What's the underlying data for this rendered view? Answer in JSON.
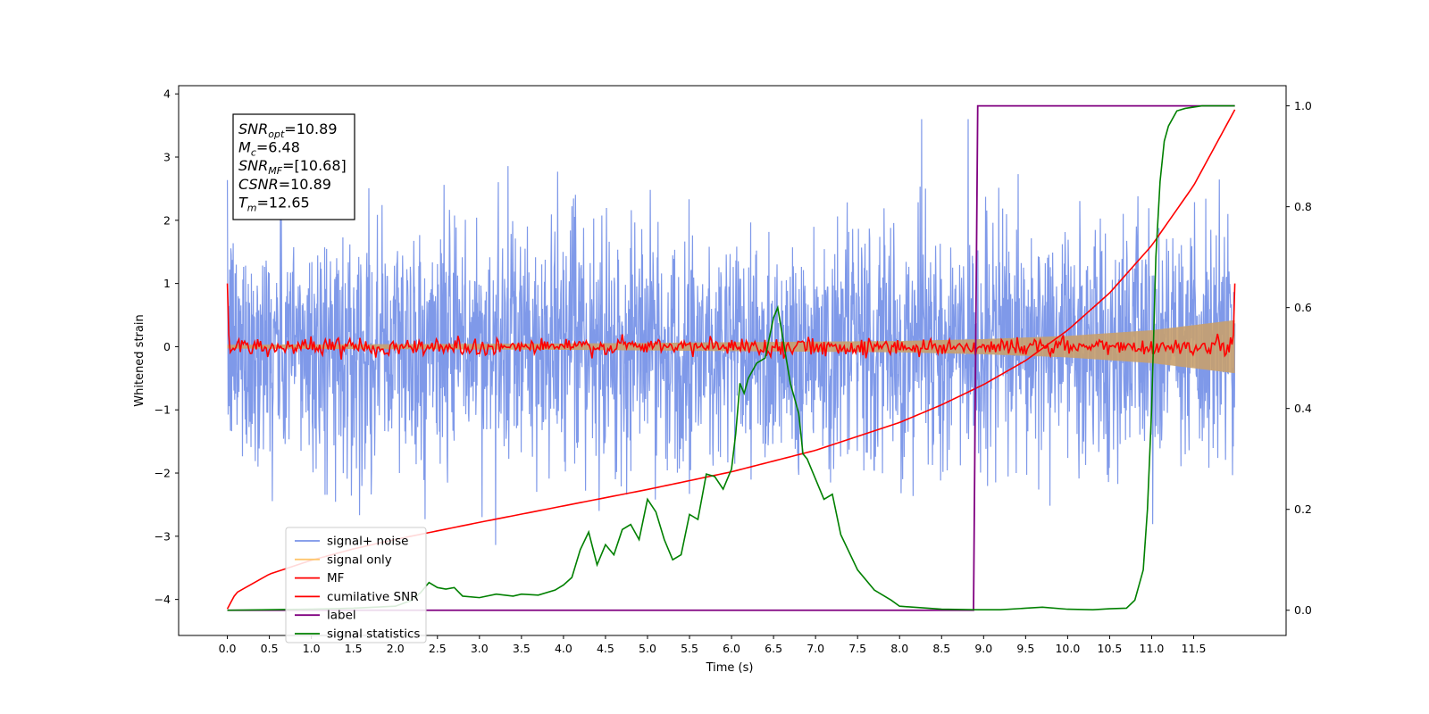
{
  "chart_data": {
    "type": "line",
    "xlabel": "Time (s)",
    "ylabel_left": "Whitened strain",
    "ylabel_right": "",
    "xlim": [
      -0.58,
      12.6
    ],
    "ylim_left": [
      -4.57,
      4.13
    ],
    "ylim_right": [
      -0.05,
      1.04
    ],
    "x_ticks": [
      0.0,
      0.5,
      1.0,
      1.5,
      2.0,
      2.5,
      3.0,
      3.5,
      4.0,
      4.5,
      5.0,
      5.5,
      6.0,
      6.5,
      7.0,
      7.5,
      8.0,
      8.5,
      9.0,
      9.5,
      10.0,
      10.5,
      11.0,
      11.5
    ],
    "x_tick_labels": [
      "0.0",
      "0.5",
      "1.0",
      "1.5",
      "2.0",
      "2.5",
      "3.0",
      "3.5",
      "4.0",
      "4.5",
      "5.0",
      "5.5",
      "6.0",
      "6.5",
      "7.0",
      "7.5",
      "8.0",
      "8.5",
      "9.0",
      "9.5",
      "10.0",
      "10.5",
      "11.0",
      "11.5"
    ],
    "y_ticks_left": [
      4,
      3,
      2,
      1,
      0,
      -1,
      -2,
      -3,
      -4
    ],
    "y_tick_labels_left": [
      "4",
      "3",
      "2",
      "1",
      "0",
      "−1",
      "−2",
      "−3",
      "−4"
    ],
    "y_ticks_right": [
      1.0,
      0.8,
      0.6,
      0.4,
      0.2,
      0.0
    ],
    "y_tick_labels_right": [
      "1.0",
      "0.8",
      "0.6",
      "0.4",
      "0.2",
      "0.0"
    ],
    "legend_placement": "lower-left",
    "legend": [
      {
        "label": "signal+ noise",
        "color": "#7893e8"
      },
      {
        "label": "signal only",
        "color": "#ffc66e"
      },
      {
        "label": "MF",
        "color": "#ff0000"
      },
      {
        "label": "cumilative SNR",
        "color": "#ff0000"
      },
      {
        "label": "label",
        "color": "#800080"
      },
      {
        "label": "signal statistics",
        "color": "#008000"
      }
    ],
    "annotation_box": [
      {
        "main": "SNR",
        "sub": "opt",
        "rest": "=10.89"
      },
      {
        "main": "M",
        "sub": "c",
        "rest": "=6.48"
      },
      {
        "main": "SNR",
        "sub": "MF",
        "rest": "=[10.68]"
      },
      {
        "main": "CSNR",
        "sub": "",
        "rest": "=10.89"
      },
      {
        "main": "T",
        "sub": "m",
        "rest": "=12.65"
      }
    ],
    "series": [
      {
        "name": "signal+ noise",
        "axis": "left",
        "color": "#7893e8",
        "x_range": [
          0.0,
          11.99
        ],
        "envelope_approx": [
          -2.6,
          2.6
        ],
        "description_values": {
          "typical_amplitude": 1.0,
          "max_peak": 3.6,
          "min_dip": -4.15
        }
      },
      {
        "name": "signal only",
        "axis": "left",
        "color": "#c8a06e",
        "x_range": [
          0.0,
          11.99
        ],
        "envelope_x": [
          0.0,
          4.0,
          8.0,
          9.0,
          10.0,
          11.0,
          11.99
        ],
        "envelope_half_width": [
          0.03,
          0.05,
          0.09,
          0.12,
          0.17,
          0.26,
          0.42
        ]
      },
      {
        "name": "MF",
        "axis": "left",
        "color": "#ff0000",
        "x_range": [
          0.0,
          11.99
        ],
        "start_value": 1.0,
        "end_value": 1.0,
        "typical_amplitude": 0.1
      },
      {
        "name": "cumilative SNR",
        "axis": "left",
        "color": "#ff0000",
        "x": [
          0.0,
          0.1,
          0.3,
          0.5,
          1.0,
          1.5,
          2.0,
          3.0,
          4.0,
          5.0,
          6.0,
          7.0,
          8.0,
          8.5,
          9.0,
          9.5,
          10.0,
          10.5,
          11.0,
          11.5,
          11.99
        ],
        "y": [
          -4.15,
          -3.9,
          -3.75,
          -3.6,
          -3.38,
          -3.2,
          -3.05,
          -2.78,
          -2.52,
          -2.26,
          -1.98,
          -1.64,
          -1.2,
          -0.92,
          -0.6,
          -0.22,
          0.26,
          0.85,
          1.6,
          2.55,
          3.75
        ]
      },
      {
        "name": "label",
        "axis": "right",
        "color": "#800080",
        "x": [
          0.0,
          8.88,
          8.93,
          11.99
        ],
        "y": [
          0.0,
          0.0,
          1.0,
          1.0
        ]
      },
      {
        "name": "signal statistics",
        "axis": "right",
        "color": "#008000",
        "x": [
          0.0,
          0.5,
          1.0,
          1.5,
          2.0,
          2.2,
          2.3,
          2.4,
          2.5,
          2.6,
          2.7,
          2.8,
          3.0,
          3.2,
          3.4,
          3.5,
          3.7,
          3.9,
          4.0,
          4.1,
          4.2,
          4.3,
          4.4,
          4.5,
          4.6,
          4.7,
          4.8,
          4.9,
          5.0,
          5.1,
          5.2,
          5.3,
          5.4,
          5.5,
          5.6,
          5.7,
          5.8,
          5.9,
          6.0,
          6.05,
          6.1,
          6.15,
          6.2,
          6.3,
          6.4,
          6.5,
          6.55,
          6.6,
          6.7,
          6.8,
          6.85,
          6.9,
          7.0,
          7.1,
          7.2,
          7.3,
          7.5,
          7.7,
          7.9,
          8.0,
          8.5,
          8.9,
          9.2,
          9.5,
          9.7,
          10.0,
          10.3,
          10.5,
          10.7,
          10.8,
          10.9,
          10.95,
          11.0,
          11.05,
          11.1,
          11.15,
          11.2,
          11.3,
          11.4,
          11.6,
          11.8,
          11.99
        ],
        "y": [
          0.0,
          0.001,
          0.002,
          0.004,
          0.008,
          0.02,
          0.035,
          0.055,
          0.045,
          0.042,
          0.045,
          0.028,
          0.025,
          0.032,
          0.028,
          0.032,
          0.03,
          0.04,
          0.05,
          0.065,
          0.12,
          0.155,
          0.09,
          0.13,
          0.11,
          0.16,
          0.17,
          0.14,
          0.22,
          0.195,
          0.14,
          0.1,
          0.11,
          0.19,
          0.18,
          0.27,
          0.265,
          0.24,
          0.28,
          0.35,
          0.45,
          0.43,
          0.46,
          0.49,
          0.5,
          0.58,
          0.6,
          0.55,
          0.45,
          0.39,
          0.31,
          0.3,
          0.26,
          0.22,
          0.23,
          0.15,
          0.08,
          0.04,
          0.02,
          0.008,
          0.002,
          0.001,
          0.001,
          0.004,
          0.006,
          0.002,
          0.001,
          0.003,
          0.004,
          0.02,
          0.08,
          0.2,
          0.4,
          0.7,
          0.85,
          0.93,
          0.96,
          0.99,
          0.995,
          1.0,
          1.0,
          1.0
        ]
      }
    ]
  }
}
